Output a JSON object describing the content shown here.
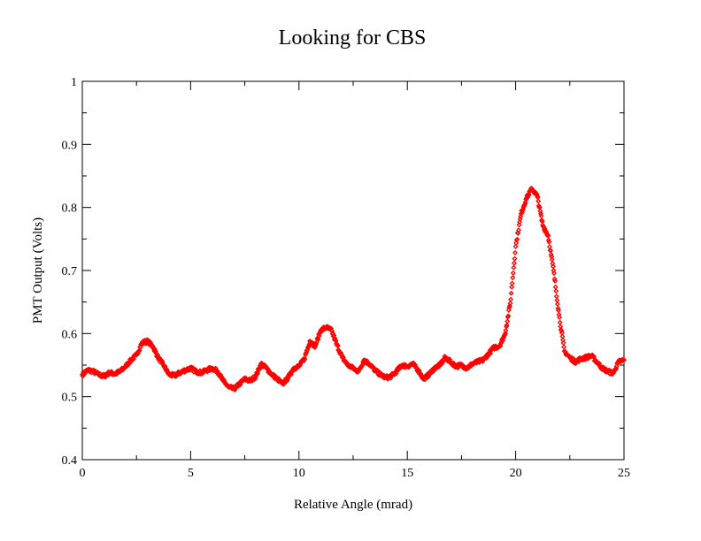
{
  "chart_data": {
    "type": "scatter",
    "title": "Looking for CBS",
    "xlabel": "Relative Angle (mrad)",
    "ylabel": "PMT Output (Volts)",
    "xlim": [
      0,
      25
    ],
    "ylim": [
      0.4,
      1.0
    ],
    "xticks": [
      "0",
      "5",
      "10",
      "15",
      "20",
      "25"
    ],
    "yticks": [
      "0.4",
      "0.5",
      "0.6",
      "0.7",
      "0.8",
      "0.9",
      "1"
    ],
    "marker_color": "#ff0000",
    "grid": false,
    "legend": "none",
    "series": [
      {
        "x": [
          0.0,
          0.25,
          0.5,
          0.75,
          1.0,
          1.25,
          1.5,
          1.75,
          2.0,
          2.25,
          2.5,
          2.75,
          3.0,
          3.25,
          3.5,
          3.75,
          4.0,
          4.25,
          4.5,
          4.75,
          5.0,
          5.25,
          5.5,
          5.75,
          6.0,
          6.25,
          6.5,
          6.75,
          7.0,
          7.25,
          7.5,
          7.75,
          8.0,
          8.25,
          8.5,
          8.75,
          9.0,
          9.25,
          9.5,
          9.75,
          10.0,
          10.25,
          10.5,
          10.75,
          11.0,
          11.25,
          11.5,
          11.75,
          12.0,
          12.25,
          12.5,
          12.75,
          13.0,
          13.25,
          13.5,
          13.75,
          14.0,
          14.25,
          14.5,
          14.75,
          15.0,
          15.25,
          15.5,
          15.75,
          16.0,
          16.25,
          16.5,
          16.75,
          17.0,
          17.25,
          17.5,
          17.75,
          18.0,
          18.25,
          18.5,
          18.75,
          19.0,
          19.25,
          19.5,
          19.75,
          20.0,
          20.25,
          20.5,
          20.75,
          21.0,
          21.25,
          21.5,
          21.75,
          22.0,
          22.25,
          22.5,
          22.75,
          23.0,
          23.25,
          23.5,
          23.75,
          24.0,
          24.25,
          24.5,
          24.75,
          25.0
        ],
        "y": [
          0.535,
          0.542,
          0.54,
          0.535,
          0.532,
          0.538,
          0.536,
          0.54,
          0.548,
          0.558,
          0.566,
          0.585,
          0.588,
          0.58,
          0.562,
          0.55,
          0.535,
          0.533,
          0.538,
          0.542,
          0.545,
          0.54,
          0.538,
          0.542,
          0.545,
          0.54,
          0.525,
          0.515,
          0.512,
          0.52,
          0.528,
          0.525,
          0.532,
          0.552,
          0.545,
          0.535,
          0.528,
          0.52,
          0.53,
          0.545,
          0.548,
          0.56,
          0.588,
          0.58,
          0.605,
          0.61,
          0.605,
          0.582,
          0.562,
          0.55,
          0.545,
          0.54,
          0.558,
          0.552,
          0.542,
          0.535,
          0.53,
          0.532,
          0.54,
          0.55,
          0.548,
          0.552,
          0.542,
          0.528,
          0.535,
          0.545,
          0.55,
          0.562,
          0.555,
          0.548,
          0.55,
          0.545,
          0.552,
          0.555,
          0.558,
          0.568,
          0.578,
          0.58,
          0.598,
          0.648,
          0.738,
          0.79,
          0.815,
          0.83,
          0.818,
          0.772,
          0.755,
          0.7,
          0.63,
          0.572,
          0.562,
          0.555,
          0.56,
          0.562,
          0.565,
          0.555,
          0.545,
          0.54,
          0.537,
          0.555,
          0.558
        ]
      }
    ]
  }
}
